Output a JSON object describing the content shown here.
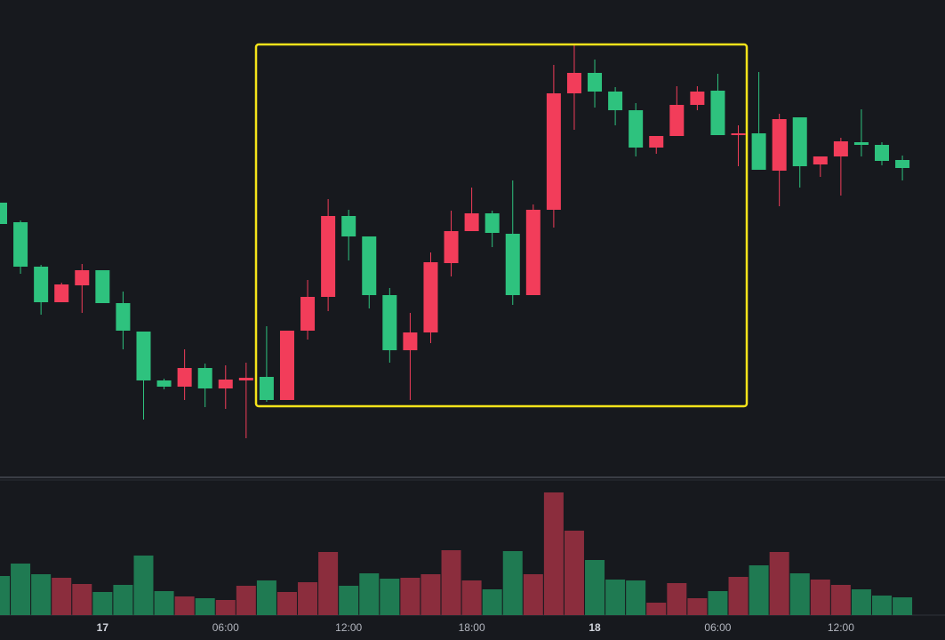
{
  "chart_data": {
    "type": "candlestick",
    "categories": [
      null,
      null,
      null,
      null,
      null,
      "17",
      null,
      null,
      null,
      null,
      null,
      "06:00",
      null,
      null,
      null,
      null,
      null,
      "12:00",
      null,
      null,
      null,
      null,
      null,
      "18:00",
      null,
      null,
      null,
      null,
      null,
      "18",
      null,
      null,
      null,
      null,
      null,
      "06:00",
      null,
      null,
      null,
      null,
      null,
      "12:00",
      null,
      null,
      null
    ],
    "open": [
      292,
      270,
      220,
      180,
      199,
      216,
      179,
      147,
      92,
      85,
      106,
      83,
      92,
      96,
      70,
      148,
      186,
      277,
      254,
      188,
      126,
      146,
      224,
      260,
      280,
      257,
      188,
      284,
      415,
      438,
      417,
      396,
      354,
      367,
      402,
      418,
      368,
      370,
      328,
      388,
      335,
      344,
      360,
      357,
      340
    ],
    "high": [
      292,
      272,
      222,
      202,
      223,
      216,
      192,
      147,
      94,
      127,
      111,
      109,
      112,
      153,
      148,
      205,
      296,
      284,
      254,
      196,
      168,
      236,
      283,
      309,
      283,
      317,
      290,
      447,
      470,
      453,
      422,
      404,
      367,
      423,
      423,
      437,
      379,
      439,
      392,
      388,
      344,
      365,
      397,
      360,
      345
    ],
    "low": [
      268,
      212,
      166,
      180,
      168,
      179,
      127,
      48,
      82,
      70,
      62,
      60,
      27,
      68,
      70,
      138,
      170,
      227,
      173,
      112,
      70,
      134,
      209,
      260,
      242,
      177,
      188,
      264,
      374,
      399,
      379,
      344,
      347,
      367,
      396,
      368,
      333,
      329,
      288,
      309,
      321,
      300,
      344,
      334,
      317
    ],
    "close": [
      268,
      220,
      180,
      200,
      216,
      179,
      148,
      92,
      85,
      106,
      83,
      93,
      95,
      70,
      148,
      186,
      277,
      254,
      188,
      126,
      146,
      225,
      260,
      280,
      258,
      188,
      284,
      415,
      438,
      417,
      396,
      354,
      367,
      402,
      417,
      368,
      370,
      329,
      386,
      333,
      344,
      361,
      357,
      339,
      331
    ],
    "volume": [
      44,
      58,
      46,
      42,
      35,
      26,
      34,
      67,
      27,
      21,
      19,
      17,
      33,
      39,
      26,
      37,
      71,
      33,
      47,
      41,
      42,
      46,
      73,
      39,
      29,
      72,
      46,
      138,
      95,
      62,
      40,
      39,
      14,
      36,
      19,
      27,
      43,
      56,
      71,
      47,
      40,
      34,
      29,
      22,
      20
    ],
    "ylim": [
      0,
      500
    ],
    "vlim": [
      0,
      150
    ],
    "up_color": "#f23d5a",
    "down_color": "#2ec27e",
    "volume_up_color": "#8b2d3d",
    "volume_down_color": "#1f7a52"
  }
}
